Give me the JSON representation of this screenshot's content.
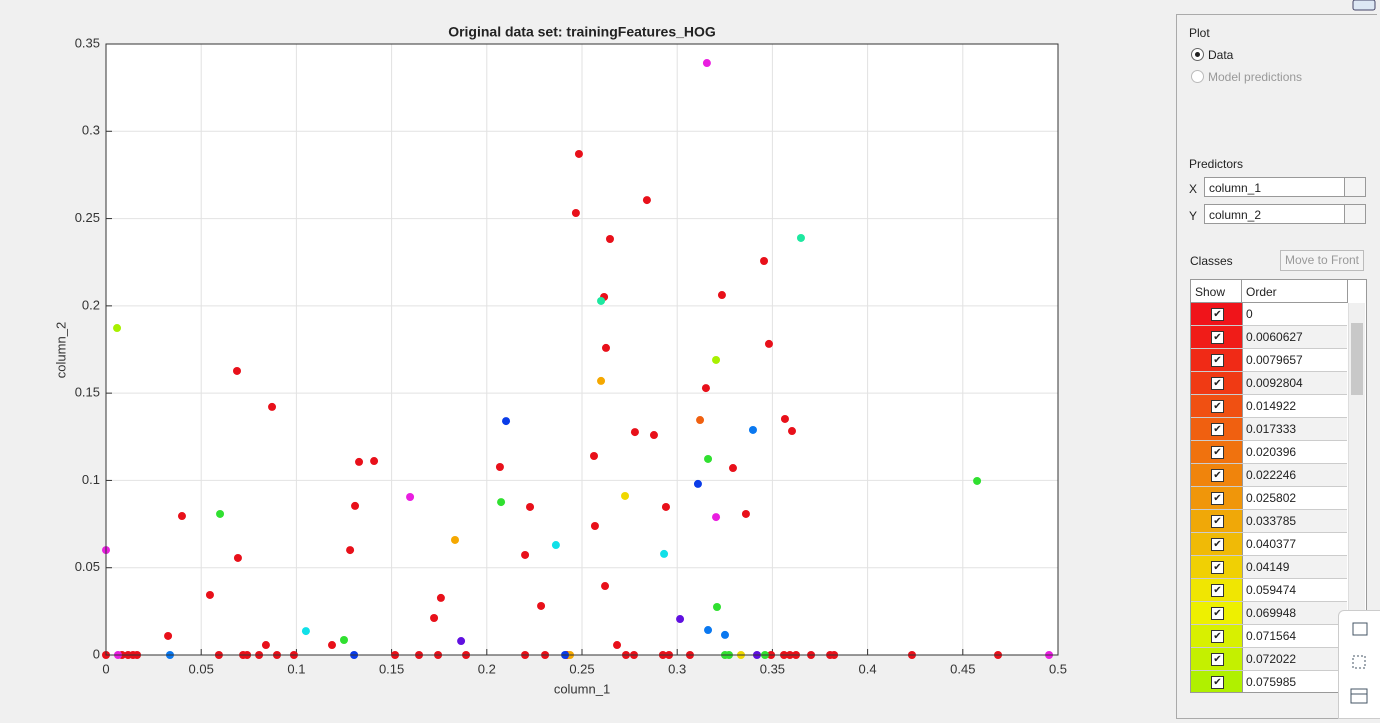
{
  "chart_data": {
    "type": "scatter",
    "title": "Original data set: trainingFeatures_HOG",
    "x_label": "column_1",
    "y_label": "column_2",
    "xlim": [
      0,
      0.5
    ],
    "ylim": [
      0,
      0.35
    ],
    "xticks": [
      0,
      0.05,
      0.1,
      0.15,
      0.2,
      0.25,
      0.3,
      0.35,
      0.4,
      0.45,
      0.5
    ],
    "yticks": [
      0,
      0.05,
      0.1,
      0.15,
      0.2,
      0.25,
      0.3,
      0.35
    ],
    "grid": true,
    "series": [
      {
        "color": "#e8101a",
        "x": [
          0,
          0.0326,
          0.0399,
          0.0546,
          0.0593,
          0.0688,
          0.0693,
          0.072,
          0.0741,
          0.0804,
          0.084,
          0.0872,
          0.0898,
          0.0987,
          0.1187,
          0.1282,
          0.1308,
          0.1329,
          0.1408,
          0.1518,
          0.1644,
          0.1723,
          0.1744,
          0.1759,
          0.1891,
          0.2069,
          0.2201,
          0.2201,
          0.2227,
          0.2285,
          0.2306,
          0.2421,
          0.2484,
          0.2468,
          0.2563,
          0.2568,
          0.2616,
          0.2621,
          0.2626,
          0.2647,
          0.2684,
          0.2731,
          0.2778,
          0.2773,
          0.2841,
          0.2878,
          0.2925,
          0.2941,
          0.2957,
          0.3067,
          0.3151,
          0.3235,
          0.3293,
          0.3361,
          0.3456,
          0.3482,
          0.3493,
          0.3561,
          0.3566,
          0.3603,
          0.3592,
          0.3624,
          0.3703,
          0.3803,
          0.3824,
          0.4233,
          0.4685,
          0.0084,
          0.0116,
          0.0142,
          0.0163
        ],
        "values": [
          0,
          0.0109,
          0.0796,
          0.0344,
          0,
          0.1627,
          0.0556,
          0,
          0,
          0,
          0.0057,
          0.1421,
          0,
          0,
          0.0057,
          0.0601,
          0.0854,
          0.1106,
          0.1111,
          0,
          0,
          0.0212,
          0,
          0.0327,
          0,
          0.1077,
          0,
          0.0573,
          0.0848,
          0.0281,
          0,
          0,
          0.287,
          0.2532,
          0.114,
          0.0739,
          0.2051,
          0.0395,
          0.1759,
          0.2383,
          0.0057,
          0,
          0.1277,
          0,
          0.2606,
          0.126,
          0,
          0.0848,
          0,
          0,
          0.1529,
          0.2062,
          0.1071,
          0.0808,
          0.2257,
          0.1782,
          0,
          0,
          0.1352,
          0.1283,
          0,
          0,
          0,
          0,
          0,
          0,
          0,
          0,
          0,
          0,
          0
        ]
      },
      {
        "color": "#e91ee0",
        "x": [
          0.3156,
          0,
          0.1597,
          0.3204,
          0.4953,
          0.0063
        ],
        "values": [
          0.3391,
          0.0601,
          0.0905,
          0.079,
          0,
          0
        ]
      },
      {
        "color": "#a8f000",
        "x": [
          0.0058,
          0.3204
        ],
        "values": [
          0.1873,
          0.169
        ]
      },
      {
        "color": "#1de8a0",
        "x": [
          0.365,
          0.26
        ],
        "values": [
          0.2389,
          0.2028
        ]
      },
      {
        "color": "#f5a800",
        "x": [
          0.26,
          0.1833,
          0.2437
        ],
        "values": [
          0.157,
          0.0659,
          0
        ]
      },
      {
        "color": "#f0d800",
        "x": [
          0.2726,
          0.3335
        ],
        "values": [
          0.0911,
          0
        ]
      },
      {
        "color": "#f06010",
        "x": [
          0.312
        ],
        "values": [
          0.1346
        ]
      },
      {
        "color": "#0a3ce8",
        "x": [
          0.2101,
          0.3109,
          0.1303,
          0.2411
        ],
        "values": [
          0.134,
          0.098,
          0,
          0
        ]
      },
      {
        "color": "#0a78f0",
        "x": [
          0.3398,
          0.3251,
          0.0336,
          0.3162
        ],
        "values": [
          0.1289,
          0.0115,
          0,
          0.0143
        ]
      },
      {
        "color": "#10e0e8",
        "x": [
          0.105,
          0.2363,
          0.2931
        ],
        "values": [
          0.0137,
          0.063,
          0.0579
        ]
      },
      {
        "color": "#30e030",
        "x": [
          0.0599,
          0.2075,
          0.3162,
          0.3209,
          0.125,
          0.4575,
          0.3251,
          0.3272,
          0.3461
        ],
        "values": [
          0.0808,
          0.0876,
          0.1123,
          0.0275,
          0.0086,
          0.0997,
          0,
          0,
          0
        ]
      },
      {
        "color": "#6010e0",
        "x": [
          0.1865,
          0.3015,
          0.3419
        ],
        "values": [
          0.008,
          0.0206,
          0
        ]
      }
    ]
  },
  "panel": {
    "plot": {
      "title": "Plot",
      "options": [
        "Data",
        "Model predictions"
      ]
    },
    "predictors": {
      "title": "Predictors",
      "x_label": "X",
      "x_value": "column_1",
      "y_label": "Y",
      "y_value": "column_2"
    },
    "classes": {
      "title": "Classes",
      "button": "Move to Front",
      "headers": [
        "Show",
        "Order"
      ],
      "rows": [
        {
          "label": "0",
          "color": "#f0141a"
        },
        {
          "label": "0.0060627",
          "color": "#f01c18"
        },
        {
          "label": "0.0079657",
          "color": "#f02a16"
        },
        {
          "label": "0.0092804",
          "color": "#f03a14"
        },
        {
          "label": "0.014922",
          "color": "#f05012"
        },
        {
          "label": "0.017333",
          "color": "#f06010"
        },
        {
          "label": "0.020396",
          "color": "#f0720e"
        },
        {
          "label": "0.022246",
          "color": "#f0840c"
        },
        {
          "label": "0.025802",
          "color": "#f0960a"
        },
        {
          "label": "0.033785",
          "color": "#f0a808"
        },
        {
          "label": "0.040377",
          "color": "#f0ba06"
        },
        {
          "label": "0.04149",
          "color": "#f0d004"
        },
        {
          "label": "0.059474",
          "color": "#f0e602"
        },
        {
          "label": "0.069948",
          "color": "#eef000"
        },
        {
          "label": "0.071564",
          "color": "#d8f000"
        },
        {
          "label": "0.072022",
          "color": "#c4f000"
        },
        {
          "label": "0.075985",
          "color": "#b0f000"
        }
      ]
    }
  }
}
